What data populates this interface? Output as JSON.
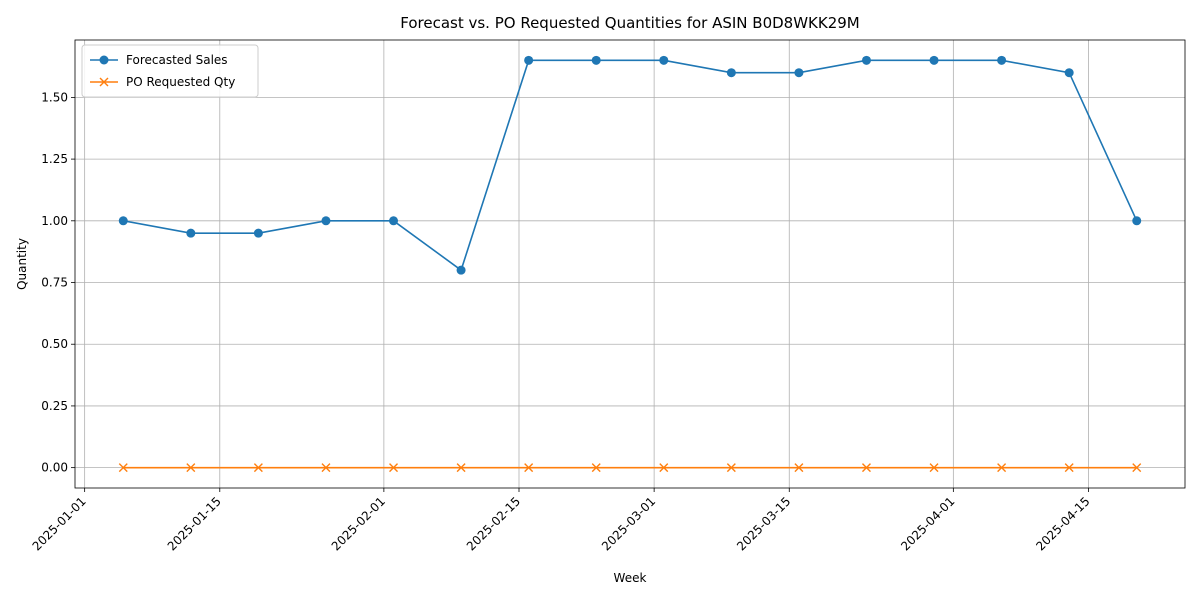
{
  "chart_data": {
    "type": "line",
    "title": "Forecast vs. PO Requested Quantities for ASIN B0D8WKK29M",
    "xlabel": "Week",
    "ylabel": "Quantity",
    "x": [
      "2025-01-05",
      "2025-01-12",
      "2025-01-19",
      "2025-01-26",
      "2025-02-02",
      "2025-02-09",
      "2025-02-16",
      "2025-02-23",
      "2025-03-02",
      "2025-03-09",
      "2025-03-16",
      "2025-03-23",
      "2025-03-30",
      "2025-04-06",
      "2025-04-13",
      "2025-04-20"
    ],
    "xticks": [
      "2025-01-01",
      "2025-01-15",
      "2025-02-01",
      "2025-02-15",
      "2025-03-01",
      "2025-03-15",
      "2025-04-01",
      "2025-04-15"
    ],
    "xlim": [
      "2024-12-31",
      "2025-04-25"
    ],
    "yticks": [
      "0.00",
      "0.25",
      "0.50",
      "0.75",
      "1.00",
      "1.25",
      "1.50"
    ],
    "ylim": [
      -0.0825,
      1.7325
    ],
    "grid": true,
    "legend_position": "upper-left",
    "series": [
      {
        "name": "Forecasted Sales",
        "color": "#1f77b4",
        "marker": "circle",
        "values": [
          1.0,
          0.95,
          0.95,
          1.0,
          1.0,
          0.8,
          1.65,
          1.65,
          1.65,
          1.6,
          1.6,
          1.65,
          1.65,
          1.65,
          1.6,
          1.0
        ]
      },
      {
        "name": "PO Requested Qty",
        "color": "#ff7f0e",
        "marker": "x",
        "values": [
          0,
          0,
          0,
          0,
          0,
          0,
          0,
          0,
          0,
          0,
          0,
          0,
          0,
          0,
          0,
          0
        ]
      }
    ]
  }
}
